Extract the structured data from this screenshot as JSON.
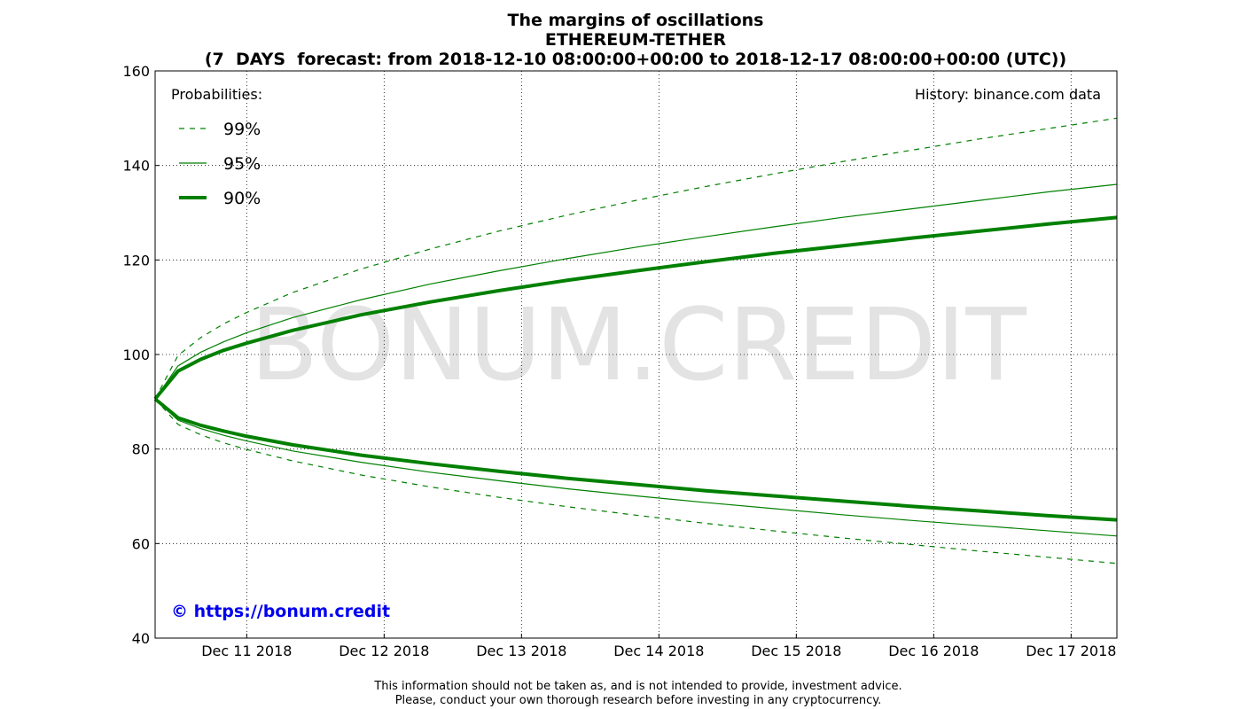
{
  "chart_data": {
    "type": "line",
    "title": [
      "The margins of oscillations",
      "ETHEREUM-TETHER",
      "(7  DAYS  forecast: from 2018-12-10 08:00:00+00:00 to 2018-12-17 08:00:00+00:00 (UTC))"
    ],
    "watermark": "BONUM.CREDIT",
    "legend_title": "Probabilities:",
    "source": "History: binance.com data",
    "link": "© https://bonum.credit",
    "disclaimer": [
      "This information should not be taken as, and is not intended to provide, investment advice.",
      "Please, conduct your own thorough research before investing in any cryptocurrency."
    ],
    "x": [
      "2018-12-10 08:00",
      "2018-12-10 12:00",
      "2018-12-10 16:00",
      "2018-12-10 20:00",
      "2018-12-11 00:00",
      "2018-12-11 08:00",
      "2018-12-11 20:00",
      "2018-12-12 08:00",
      "2018-12-12 20:00",
      "2018-12-13 08:00",
      "2018-12-13 20:00",
      "2018-12-14 08:00",
      "2018-12-14 20:00",
      "2018-12-15 08:00",
      "2018-12-15 20:00",
      "2018-12-16 08:00",
      "2018-12-16 20:00",
      "2018-12-17 08:00"
    ],
    "series": [
      {
        "name": "99%",
        "color": "#008000",
        "dash": true,
        "width": 1.2,
        "upper": [
          90.6,
          99.8,
          103.6,
          106.5,
          108.9,
          113.1,
          118.1,
          122.3,
          126.1,
          129.5,
          132.6,
          135.5,
          138.2,
          140.8,
          143.2,
          145.6,
          147.8,
          150.0
        ],
        "lower": [
          90.6,
          85.2,
          83.0,
          81.3,
          79.9,
          77.5,
          74.5,
          72.0,
          69.8,
          67.8,
          66.0,
          64.3,
          62.7,
          61.2,
          59.8,
          58.4,
          57.1,
          55.8
        ]
      },
      {
        "name": "95%",
        "color": "#008000",
        "dash": false,
        "width": 1.2,
        "upper": [
          90.6,
          97.6,
          100.5,
          102.7,
          104.6,
          107.8,
          111.6,
          114.9,
          117.7,
          120.3,
          122.7,
          124.9,
          127.0,
          129.0,
          130.8,
          132.6,
          134.4,
          136.0
        ],
        "lower": [
          90.6,
          86.1,
          84.3,
          82.9,
          81.7,
          79.6,
          77.2,
          75.1,
          73.3,
          71.6,
          70.1,
          68.7,
          67.4,
          66.1,
          64.9,
          63.8,
          62.7,
          61.6
        ]
      },
      {
        "name": "90%",
        "color": "#008000",
        "dash": false,
        "width": 4,
        "upper": [
          90.6,
          96.5,
          99.0,
          100.9,
          102.4,
          105.1,
          108.4,
          111.1,
          113.5,
          115.7,
          117.7,
          119.6,
          121.4,
          123.0,
          124.6,
          126.1,
          127.6,
          129.0
        ],
        "lower": [
          90.6,
          86.6,
          85.0,
          83.8,
          82.7,
          80.9,
          78.7,
          76.9,
          75.3,
          73.8,
          72.5,
          71.2,
          70.1,
          69.0,
          67.9,
          66.9,
          65.9,
          65.0
        ]
      }
    ],
    "xlim": [
      "2018-12-10 08:00",
      "2018-12-17 08:00"
    ],
    "xticks": [
      {
        "value": "2018-12-11 00:00",
        "label": "Dec 11 2018"
      },
      {
        "value": "2018-12-12 00:00",
        "label": "Dec 12 2018"
      },
      {
        "value": "2018-12-13 00:00",
        "label": "Dec 13 2018"
      },
      {
        "value": "2018-12-14 00:00",
        "label": "Dec 14 2018"
      },
      {
        "value": "2018-12-15 00:00",
        "label": "Dec 15 2018"
      },
      {
        "value": "2018-12-16 00:00",
        "label": "Dec 16 2018"
      },
      {
        "value": "2018-12-17 00:00",
        "label": "Dec 17 2018"
      }
    ],
    "ylim": [
      40,
      160
    ],
    "yticks": [
      40,
      60,
      80,
      100,
      120,
      140,
      160
    ],
    "grid": true
  }
}
